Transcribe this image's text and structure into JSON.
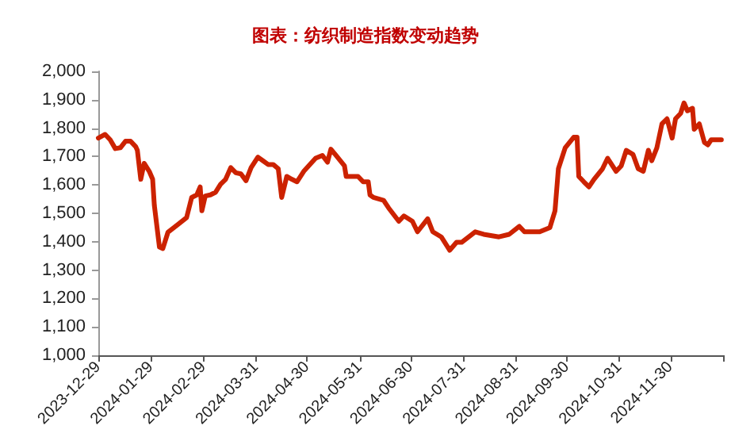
{
  "chart_data": {
    "type": "line",
    "title": "图表：纺织制造指数变动趋势",
    "x": [
      "2023-12-29",
      "2024-01-02",
      "2024-01-05",
      "2024-01-08",
      "2024-01-11",
      "2024-01-14",
      "2024-01-17",
      "2024-01-20",
      "2024-01-21",
      "2024-01-23",
      "2024-01-25",
      "2024-01-28",
      "2024-01-30",
      "2024-01-31",
      "2024-02-03",
      "2024-02-05",
      "2024-02-08",
      "2024-02-14",
      "2024-02-19",
      "2024-02-22",
      "2024-02-25",
      "2024-02-27",
      "2024-02-28",
      "2024-03-01",
      "2024-03-04",
      "2024-03-07",
      "2024-03-10",
      "2024-03-13",
      "2024-03-16",
      "2024-03-19",
      "2024-03-22",
      "2024-03-25",
      "2024-03-28",
      "2024-04-01",
      "2024-04-04",
      "2024-04-07",
      "2024-04-10",
      "2024-04-13",
      "2024-04-15",
      "2024-04-18",
      "2024-04-21",
      "2024-04-24",
      "2024-04-28",
      "2024-05-05",
      "2024-05-09",
      "2024-05-12",
      "2024-05-14",
      "2024-05-17",
      "2024-05-22",
      "2024-05-23",
      "2024-05-30",
      "2024-06-02",
      "2024-06-05",
      "2024-06-06",
      "2024-06-08",
      "2024-06-14",
      "2024-06-17",
      "2024-06-23",
      "2024-06-26",
      "2024-07-01",
      "2024-07-04",
      "2024-07-10",
      "2024-07-13",
      "2024-07-18",
      "2024-07-23",
      "2024-07-27",
      "2024-07-30",
      "2024-08-07",
      "2024-08-12",
      "2024-08-21",
      "2024-08-27",
      "2024-09-02",
      "2024-09-05",
      "2024-09-14",
      "2024-09-20",
      "2024-09-23",
      "2024-09-25",
      "2024-09-29",
      "2024-10-04",
      "2024-10-06",
      "2024-10-07",
      "2024-10-10",
      "2024-10-13",
      "2024-10-16",
      "2024-10-21",
      "2024-10-24",
      "2024-10-29",
      "2024-11-01",
      "2024-11-04",
      "2024-11-08",
      "2024-11-11",
      "2024-11-14",
      "2024-11-17",
      "2024-11-19",
      "2024-11-22",
      "2024-11-25",
      "2024-11-28",
      "2024-12-01",
      "2024-12-03",
      "2024-12-06",
      "2024-12-08",
      "2024-12-10",
      "2024-12-13",
      "2024-12-14",
      "2024-12-17",
      "2024-12-20",
      "2024-12-22",
      "2024-12-24",
      "2024-12-30"
    ],
    "series": [
      {
        "color": "#cc2200",
        "values": [
          1765,
          1778,
          1759,
          1728,
          1731,
          1754,
          1754,
          1735,
          1722,
          1620,
          1676,
          1648,
          1620,
          1528,
          1381,
          1376,
          1433,
          1461,
          1485,
          1556,
          1565,
          1593,
          1509,
          1561,
          1565,
          1574,
          1602,
          1620,
          1661,
          1643,
          1639,
          1615,
          1661,
          1698,
          1685,
          1672,
          1672,
          1657,
          1556,
          1630,
          1620,
          1611,
          1648,
          1694,
          1704,
          1680,
          1726,
          1704,
          1667,
          1630,
          1630,
          1611,
          1611,
          1565,
          1556,
          1546,
          1519,
          1472,
          1491,
          1472,
          1435,
          1481,
          1435,
          1417,
          1370,
          1398,
          1398,
          1435,
          1426,
          1417,
          1426,
          1454,
          1435,
          1435,
          1450,
          1509,
          1657,
          1731,
          1768,
          1768,
          1630,
          1611,
          1593,
          1620,
          1657,
          1694,
          1648,
          1667,
          1722,
          1707,
          1657,
          1648,
          1722,
          1685,
          1731,
          1815,
          1833,
          1765,
          1833,
          1852,
          1889,
          1861,
          1870,
          1796,
          1815,
          1750,
          1741,
          1759,
          1759
        ]
      }
    ],
    "xlim": [
      "2023-12-29",
      "2024-12-31"
    ],
    "xticks": [
      "2023-12-29",
      "2024-01-29",
      "2024-02-29",
      "2024-03-31",
      "2024-04-30",
      "2024-05-31",
      "2024-06-30",
      "2024-07-31",
      "2024-08-31",
      "2024-09-30",
      "2024-10-31",
      "2024-11-30",
      {
        "value": "2024-12-31",
        "label": null
      }
    ],
    "ylim": [
      1000,
      2000
    ],
    "yticks": [
      {
        "value": 1000,
        "label": "1,000"
      },
      {
        "value": 1100,
        "label": "1,100"
      },
      {
        "value": 1200,
        "label": "1,200"
      },
      {
        "value": 1300,
        "label": "1,300"
      },
      {
        "value": 1400,
        "label": "1,400"
      },
      {
        "value": 1500,
        "label": "1,500"
      },
      {
        "value": 1600,
        "label": "1,600"
      },
      {
        "value": 1700,
        "label": "1,700"
      },
      {
        "value": 1800,
        "label": "1,800"
      },
      {
        "value": 1900,
        "label": "1,900"
      },
      {
        "value": 2000,
        "label": "2,000"
      }
    ],
    "grid": false,
    "marker": "none",
    "line_style": "solid"
  }
}
